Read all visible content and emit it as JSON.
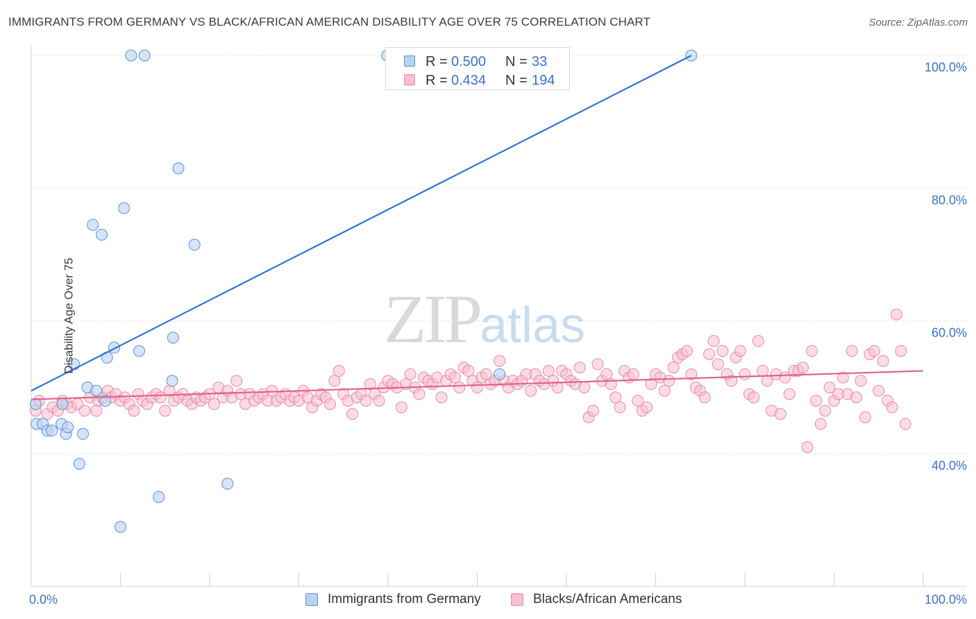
{
  "title": "IMMIGRANTS FROM GERMANY VS BLACK/AFRICAN AMERICAN DISABILITY AGE OVER 75 CORRELATION CHART",
  "source": "Source: ZipAtlas.com",
  "watermark": {
    "zip": "ZIP",
    "atlas": "atlas"
  },
  "legend": {
    "r_label": "R =",
    "n_label": "N =",
    "blue": {
      "r": "0.500",
      "n": "33"
    },
    "pink": {
      "r": "0.434",
      "n": "194"
    }
  },
  "colors": {
    "blue_fill": "#b9d2f1",
    "blue_stroke": "#5b8fd6",
    "blue_line": "#2f72d0",
    "pink_fill": "#f7c0d0",
    "pink_stroke": "#e58aa8",
    "pink_line": "#e0628d",
    "tick_label": "#3a72c4",
    "grid": "#e3e3e3"
  },
  "chart_data": {
    "type": "scatter",
    "title": "IMMIGRANTS FROM GERMANY VS BLACK/AFRICAN AMERICAN DISABILITY AGE OVER 75 CORRELATION CHART",
    "xlabel": "",
    "ylabel": "Disability Age Over 75",
    "xlim": [
      0,
      100
    ],
    "ylim": [
      22,
      102
    ],
    "x_tick_labels": [
      "0.0%",
      "100.0%"
    ],
    "y_ticks": [
      40,
      60,
      80,
      100
    ],
    "y_tick_labels": [
      "40.0%",
      "60.0%",
      "80.0%",
      "100.0%"
    ],
    "grid": true,
    "legend_position": "top-center",
    "series": [
      {
        "name": "Immigrants from Germany",
        "color": "#5b8fd6",
        "trend": {
          "x": [
            0,
            74
          ],
          "y": [
            49.5,
            100
          ]
        },
        "points": [
          [
            0.5,
            47.5
          ],
          [
            0.6,
            44.5
          ],
          [
            1.3,
            44.5
          ],
          [
            1.8,
            43.5
          ],
          [
            2.3,
            43.5
          ],
          [
            3.5,
            47.5
          ],
          [
            3.4,
            44.5
          ],
          [
            3.9,
            43
          ],
          [
            4.1,
            44
          ],
          [
            4.8,
            53.5
          ],
          [
            5.4,
            38.5
          ],
          [
            5.8,
            43
          ],
          [
            6.3,
            50
          ],
          [
            7.3,
            49.5
          ],
          [
            8.5,
            54.5
          ],
          [
            8.3,
            48
          ],
          [
            9.3,
            56
          ],
          [
            12.1,
            55.5
          ],
          [
            11.2,
            100
          ],
          [
            12.7,
            100
          ],
          [
            6.9,
            74.5
          ],
          [
            7.9,
            73
          ],
          [
            10.4,
            77
          ],
          [
            16.5,
            83
          ],
          [
            18.3,
            71.5
          ],
          [
            15.8,
            51
          ],
          [
            15.9,
            57.5
          ],
          [
            14.3,
            33.5
          ],
          [
            10,
            29
          ],
          [
            22,
            35.5
          ],
          [
            39.9,
            100
          ],
          [
            74,
            100
          ],
          [
            52.5,
            52
          ]
        ]
      },
      {
        "name": "Blacks/African Americans",
        "color": "#e58aa8",
        "trend": {
          "x": [
            0,
            100
          ],
          "y": [
            48.2,
            52.5
          ]
        },
        "points": [
          [
            0.5,
            46.5
          ],
          [
            0.9,
            48
          ],
          [
            1.8,
            46
          ],
          [
            2.4,
            47
          ],
          [
            3,
            46.5
          ],
          [
            3.5,
            48
          ],
          [
            4,
            47.5
          ],
          [
            4.5,
            47
          ],
          [
            5.2,
            47.5
          ],
          [
            6,
            46.5
          ],
          [
            6.6,
            48.5
          ],
          [
            7.3,
            46.5
          ],
          [
            7.5,
            48
          ],
          [
            8,
            48.5
          ],
          [
            8.6,
            49.5
          ],
          [
            9,
            48.5
          ],
          [
            9.5,
            49
          ],
          [
            10,
            48
          ],
          [
            10.5,
            48.5
          ],
          [
            11,
            47.5
          ],
          [
            11.5,
            46.5
          ],
          [
            12,
            49
          ],
          [
            12.5,
            48
          ],
          [
            13,
            47.5
          ],
          [
            13.5,
            48.5
          ],
          [
            14,
            49
          ],
          [
            14.5,
            48.5
          ],
          [
            15,
            46.5
          ],
          [
            15.5,
            49.5
          ],
          [
            16,
            48
          ],
          [
            16.5,
            48.5
          ],
          [
            17,
            49
          ],
          [
            17.5,
            48
          ],
          [
            18,
            47.5
          ],
          [
            18.5,
            48.5
          ],
          [
            19,
            48
          ],
          [
            19.5,
            48.5
          ],
          [
            20,
            49
          ],
          [
            20.5,
            47.5
          ],
          [
            21,
            50
          ],
          [
            21.5,
            48.5
          ],
          [
            22,
            49.5
          ],
          [
            22.5,
            48.5
          ],
          [
            23,
            51
          ],
          [
            23.5,
            49
          ],
          [
            24,
            47.5
          ],
          [
            24.5,
            49
          ],
          [
            25,
            48
          ],
          [
            25.5,
            48.5
          ],
          [
            26,
            49
          ],
          [
            26.5,
            48
          ],
          [
            27,
            49.5
          ],
          [
            27.5,
            48
          ],
          [
            28,
            48.5
          ],
          [
            28.5,
            49
          ],
          [
            29,
            48
          ],
          [
            29.5,
            48.5
          ],
          [
            30,
            48
          ],
          [
            30.5,
            49.5
          ],
          [
            31,
            48.5
          ],
          [
            31.5,
            47
          ],
          [
            32,
            48
          ],
          [
            32.5,
            49
          ],
          [
            33,
            48.5
          ],
          [
            33.5,
            47.5
          ],
          [
            34,
            51
          ],
          [
            34.5,
            52.5
          ],
          [
            35,
            49
          ],
          [
            35.5,
            48
          ],
          [
            36,
            46
          ],
          [
            36.5,
            48.5
          ],
          [
            37,
            49
          ],
          [
            37.5,
            48
          ],
          [
            38,
            50.5
          ],
          [
            38.5,
            49
          ],
          [
            39,
            48
          ],
          [
            39.5,
            50
          ],
          [
            40,
            51
          ],
          [
            40.5,
            50.5
          ],
          [
            41,
            50
          ],
          [
            41.5,
            47
          ],
          [
            42,
            50.5
          ],
          [
            42.5,
            52
          ],
          [
            43,
            50
          ],
          [
            43.5,
            49
          ],
          [
            44,
            51.5
          ],
          [
            44.5,
            51
          ],
          [
            45,
            50.5
          ],
          [
            45.5,
            51.5
          ],
          [
            46,
            48.5
          ],
          [
            46.5,
            51
          ],
          [
            47,
            52
          ],
          [
            47.5,
            51.5
          ],
          [
            48,
            50
          ],
          [
            48.5,
            53
          ],
          [
            49,
            52.5
          ],
          [
            49.5,
            51
          ],
          [
            50,
            50
          ],
          [
            50.5,
            51.5
          ],
          [
            51,
            52
          ],
          [
            51.5,
            50.5
          ],
          [
            52,
            51
          ],
          [
            52.5,
            54
          ],
          [
            53,
            51
          ],
          [
            53.5,
            50
          ],
          [
            54,
            51
          ],
          [
            54.5,
            50.5
          ],
          [
            55,
            51
          ],
          [
            55.5,
            52
          ],
          [
            56,
            49.5
          ],
          [
            56.5,
            52
          ],
          [
            57,
            51
          ],
          [
            57.5,
            50.5
          ],
          [
            58,
            52.5
          ],
          [
            58.5,
            51
          ],
          [
            59,
            50
          ],
          [
            59.5,
            52.5
          ],
          [
            60,
            52
          ],
          [
            60.5,
            51
          ],
          [
            61,
            50.5
          ],
          [
            61.5,
            53
          ],
          [
            62,
            50
          ],
          [
            62.5,
            45.5
          ],
          [
            63,
            46.5
          ],
          [
            63.5,
            53.5
          ],
          [
            64,
            51
          ],
          [
            64.5,
            52
          ],
          [
            65,
            50.5
          ],
          [
            65.5,
            48.5
          ],
          [
            66,
            47
          ],
          [
            66.5,
            52.5
          ],
          [
            67,
            51.5
          ],
          [
            67.5,
            52
          ],
          [
            68,
            48
          ],
          [
            68.5,
            46.5
          ],
          [
            69,
            47
          ],
          [
            69.5,
            50.5
          ],
          [
            70,
            52
          ],
          [
            70.5,
            51.5
          ],
          [
            71,
            49.5
          ],
          [
            71.5,
            51
          ],
          [
            72,
            53
          ],
          [
            72.5,
            54.5
          ],
          [
            73,
            55
          ],
          [
            73.5,
            55.5
          ],
          [
            74,
            52
          ],
          [
            74.5,
            50
          ],
          [
            75,
            49.5
          ],
          [
            75.5,
            48.5
          ],
          [
            76,
            55
          ],
          [
            76.5,
            57
          ],
          [
            77,
            53.5
          ],
          [
            77.5,
            55.5
          ],
          [
            78,
            52
          ],
          [
            78.5,
            51
          ],
          [
            79,
            54.5
          ],
          [
            79.5,
            55.5
          ],
          [
            80,
            52
          ],
          [
            80.5,
            49
          ],
          [
            81,
            48.5
          ],
          [
            81.5,
            57
          ],
          [
            82,
            52.5
          ],
          [
            82.5,
            51
          ],
          [
            83,
            46.5
          ],
          [
            83.5,
            52
          ],
          [
            84,
            46
          ],
          [
            84.5,
            51.5
          ],
          [
            85,
            49
          ],
          [
            85.5,
            52.5
          ],
          [
            86,
            52.5
          ],
          [
            86.5,
            53
          ],
          [
            87,
            41
          ],
          [
            87.5,
            55.5
          ],
          [
            88,
            48
          ],
          [
            88.5,
            44.5
          ],
          [
            89,
            46.5
          ],
          [
            89.5,
            50
          ],
          [
            90,
            48
          ],
          [
            90.5,
            49
          ],
          [
            91,
            51.5
          ],
          [
            91.5,
            49
          ],
          [
            92,
            55.5
          ],
          [
            92.5,
            48.5
          ],
          [
            93,
            51
          ],
          [
            93.5,
            45.5
          ],
          [
            94,
            55
          ],
          [
            94.5,
            55.5
          ],
          [
            95,
            49.5
          ],
          [
            95.5,
            54
          ],
          [
            96,
            48
          ],
          [
            96.5,
            47
          ],
          [
            97,
            61
          ],
          [
            97.5,
            55.5
          ],
          [
            98,
            44.5
          ]
        ]
      }
    ]
  },
  "bottom_legend": {
    "blue_label": "Immigrants from Germany",
    "pink_label": "Blacks/African Americans"
  }
}
